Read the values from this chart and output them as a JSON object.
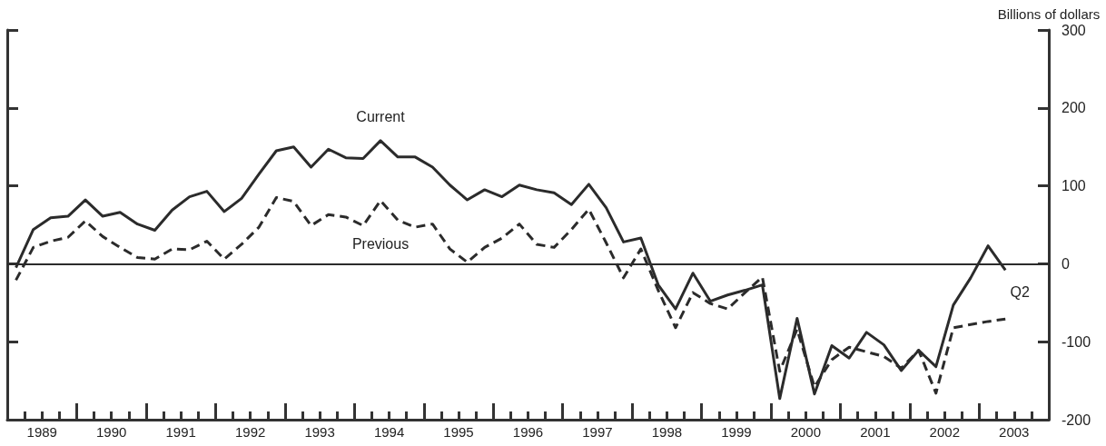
{
  "chart_data": {
    "type": "line",
    "ylabel": "Billions of dollars",
    "x": [
      1989.125,
      1989.375,
      1989.625,
      1989.875,
      1990.125,
      1990.375,
      1990.625,
      1990.875,
      1991.125,
      1991.375,
      1991.625,
      1991.875,
      1992.125,
      1992.375,
      1992.625,
      1992.875,
      1993.125,
      1993.375,
      1993.625,
      1993.875,
      1994.125,
      1994.375,
      1994.625,
      1994.875,
      1995.125,
      1995.375,
      1995.625,
      1995.875,
      1996.125,
      1996.375,
      1996.625,
      1996.875,
      1997.125,
      1997.375,
      1997.625,
      1997.875,
      1998.125,
      1998.375,
      1998.625,
      1998.875,
      1999.125,
      1999.375,
      1999.625,
      1999.875,
      2000.125,
      2000.375,
      2000.625,
      2000.875,
      2001.125,
      2001.375,
      2001.625,
      2001.875,
      2002.125,
      2002.375,
      2002.625,
      2002.875,
      2003.125,
      2003.375
    ],
    "series": [
      {
        "name": "Current",
        "color": "#2b2b2b",
        "line_style": "solid",
        "values": [
          -5,
          44,
          59,
          61,
          82,
          61,
          66,
          51,
          43,
          69,
          86,
          93,
          67,
          84,
          115,
          145,
          150,
          124,
          147,
          136,
          135,
          158,
          137,
          137,
          124,
          101,
          82,
          95,
          86,
          101,
          95,
          91,
          76,
          102,
          72,
          28,
          33,
          -27,
          -58,
          -12,
          -48,
          -40,
          -34,
          -27,
          -173,
          -70,
          -167,
          -105,
          -121,
          -88,
          -104,
          -137,
          -111,
          -132,
          -53,
          -18,
          23,
          -8
        ]
      },
      {
        "name": "Previous",
        "color": "#2b2b2b",
        "line_style": "dashed",
        "values": [
          -21,
          21,
          29,
          34,
          55,
          35,
          21,
          8,
          6,
          19,
          18,
          29,
          6,
          25,
          47,
          85,
          80,
          49,
          63,
          60,
          49,
          81,
          56,
          47,
          51,
          19,
          2,
          21,
          33,
          51,
          25,
          21,
          44,
          70,
          27,
          -18,
          19,
          -34,
          -82,
          -37,
          -51,
          -58,
          -37,
          -17,
          -138,
          -84,
          -158,
          -123,
          -107,
          -113,
          -119,
          -134,
          -111,
          -166,
          -82,
          -78,
          -74,
          -71
        ]
      }
    ],
    "annotations": [
      {
        "text": "Q2",
        "x": 2003.375,
        "y": -8
      }
    ],
    "ref_lines": [
      {
        "axis": "y",
        "value": 0,
        "label": null,
        "color": "#2b2b2b"
      }
    ],
    "xlim": [
      1989,
      2004
    ],
    "xticks": [
      {
        "value": 1989.25,
        "label": null
      },
      {
        "value": 1989.5,
        "label": "1989"
      },
      {
        "value": 1989.75,
        "label": null
      },
      {
        "value": 1990,
        "label": null
      },
      {
        "value": 1990.25,
        "label": null
      },
      {
        "value": 1990.5,
        "label": "1990"
      },
      {
        "value": 1990.75,
        "label": null
      },
      {
        "value": 1991,
        "label": null
      },
      {
        "value": 1991.25,
        "label": null
      },
      {
        "value": 1991.5,
        "label": "1991"
      },
      {
        "value": 1991.75,
        "label": null
      },
      {
        "value": 1992,
        "label": null
      },
      {
        "value": 1992.25,
        "label": null
      },
      {
        "value": 1992.5,
        "label": "1992"
      },
      {
        "value": 1992.75,
        "label": null
      },
      {
        "value": 1993,
        "label": null
      },
      {
        "value": 1993.25,
        "label": null
      },
      {
        "value": 1993.5,
        "label": "1993"
      },
      {
        "value": 1993.75,
        "label": null
      },
      {
        "value": 1994,
        "label": null
      },
      {
        "value": 1994.25,
        "label": null
      },
      {
        "value": 1994.5,
        "label": "1994"
      },
      {
        "value": 1994.75,
        "label": null
      },
      {
        "value": 1995,
        "label": null
      },
      {
        "value": 1995.25,
        "label": null
      },
      {
        "value": 1995.5,
        "label": "1995"
      },
      {
        "value": 1995.75,
        "label": null
      },
      {
        "value": 1996,
        "label": null
      },
      {
        "value": 1996.25,
        "label": null
      },
      {
        "value": 1996.5,
        "label": "1996"
      },
      {
        "value": 1996.75,
        "label": null
      },
      {
        "value": 1997,
        "label": null
      },
      {
        "value": 1997.25,
        "label": null
      },
      {
        "value": 1997.5,
        "label": "1997"
      },
      {
        "value": 1997.75,
        "label": null
      },
      {
        "value": 1998,
        "label": null
      },
      {
        "value": 1998.25,
        "label": null
      },
      {
        "value": 1998.5,
        "label": "1998"
      },
      {
        "value": 1998.75,
        "label": null
      },
      {
        "value": 1999,
        "label": null
      },
      {
        "value": 1999.25,
        "label": null
      },
      {
        "value": 1999.5,
        "label": "1999"
      },
      {
        "value": 1999.75,
        "label": null
      },
      {
        "value": 2000,
        "label": null
      },
      {
        "value": 2000.25,
        "label": null
      },
      {
        "value": 2000.5,
        "label": "2000"
      },
      {
        "value": 2000.75,
        "label": null
      },
      {
        "value": 2001,
        "label": null
      },
      {
        "value": 2001.25,
        "label": null
      },
      {
        "value": 2001.5,
        "label": "2001"
      },
      {
        "value": 2001.75,
        "label": null
      },
      {
        "value": 2002,
        "label": null
      },
      {
        "value": 2002.25,
        "label": null
      },
      {
        "value": 2002.5,
        "label": "2002"
      },
      {
        "value": 2002.75,
        "label": null
      },
      {
        "value": 2003,
        "label": null
      },
      {
        "value": 2003.25,
        "label": null
      },
      {
        "value": 2003.5,
        "label": "2003"
      },
      {
        "value": 2003.75,
        "label": null
      }
    ],
    "ylim": [
      -200,
      300
    ],
    "yticks": [
      -200,
      -100,
      0,
      100,
      200,
      300
    ],
    "marker": "none",
    "legend": false,
    "grid": false
  }
}
